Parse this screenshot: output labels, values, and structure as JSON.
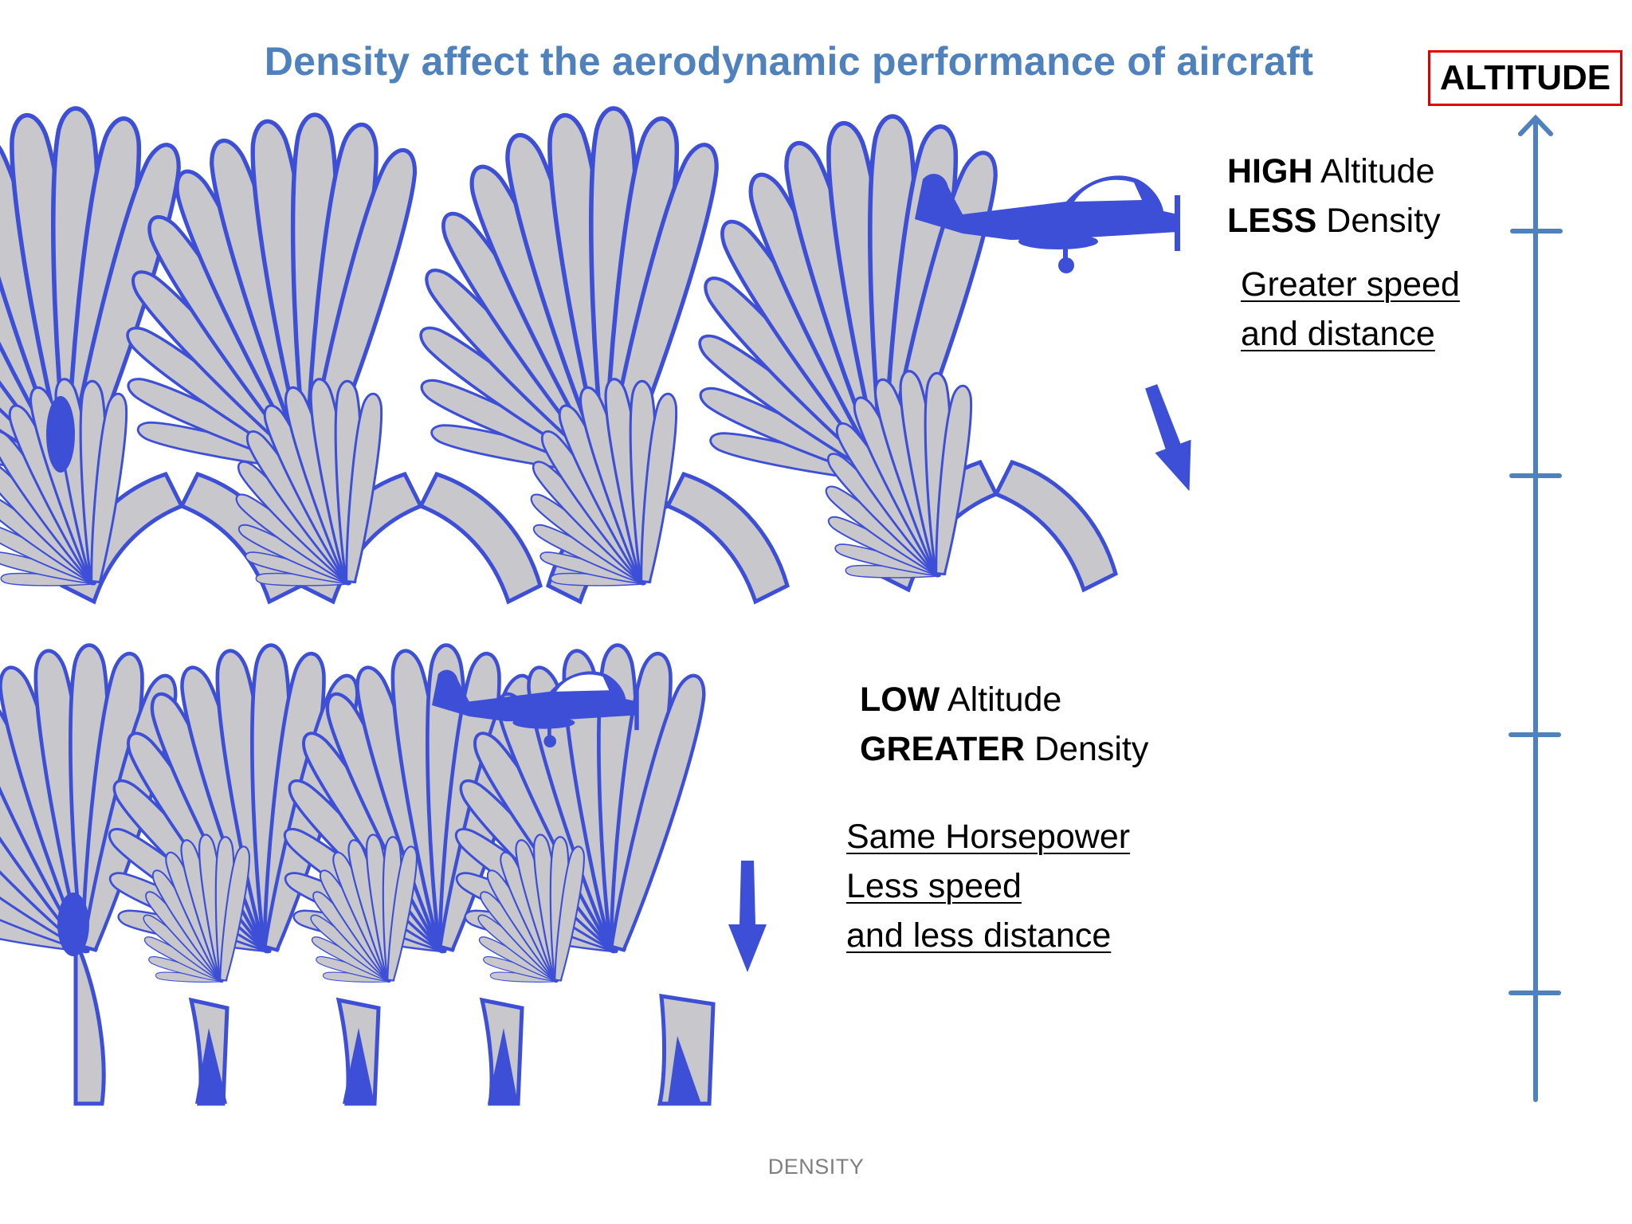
{
  "title": "Density affect the aerodynamic performance of aircraft",
  "altitude_label": "ALTITUDE",
  "high": {
    "altitude_word": "HIGH",
    "altitude_rest": "Altitude",
    "density_word": "LESS",
    "density_rest": "Density",
    "effect_line1": "Greater speed",
    "effect_line2": "and distance"
  },
  "low": {
    "altitude_word": "LOW",
    "altitude_rest": "Altitude",
    "density_word": "GREATER",
    "density_rest": "Density",
    "effect_line1": "Same Horsepower",
    "effect_line2": "Less speed",
    "effect_line3": "and less distance"
  },
  "footer": "DENSITY",
  "colors": {
    "title": "#4f81bd",
    "axis": "#4f81bd",
    "label_border": "#e00000",
    "fan_fill": "#c8c8cc",
    "fan_outline": "#3d4fd6",
    "aircraft": "#3d4fd6"
  },
  "icons": [
    "aircraft-icon",
    "propeller-spinner-icon",
    "down-arrow-icon",
    "up-arrow-icon"
  ]
}
